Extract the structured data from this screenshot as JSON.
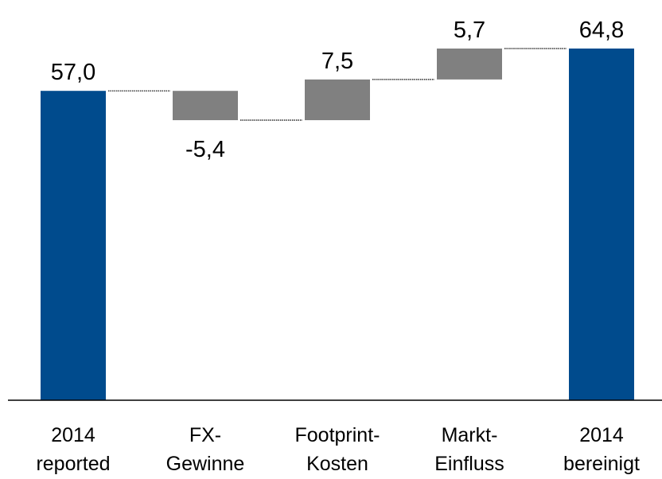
{
  "chart_data": {
    "type": "bar",
    "subtype": "waterfall",
    "categories": [
      [
        "2014",
        "reported"
      ],
      [
        "FX-",
        "Gewinne"
      ],
      [
        "Footprint-",
        "Kosten"
      ],
      [
        "Markt-",
        "Einfluss"
      ],
      [
        "2014",
        "bereinigt"
      ]
    ],
    "steps": [
      {
        "kind": "total",
        "value": 57.0,
        "label": "57,0"
      },
      {
        "kind": "delta",
        "value": -5.4,
        "label": "-5,4"
      },
      {
        "kind": "delta",
        "value": 7.5,
        "label": "7,5"
      },
      {
        "kind": "delta",
        "value": 5.7,
        "label": "5,7"
      },
      {
        "kind": "total",
        "value": 64.8,
        "label": "64,8"
      }
    ],
    "colors": {
      "total": "#004b8d",
      "delta": "#808080"
    },
    "ylim": [
      0,
      64.8
    ],
    "grid": false,
    "title": "",
    "xlabel": "",
    "ylabel": ""
  }
}
